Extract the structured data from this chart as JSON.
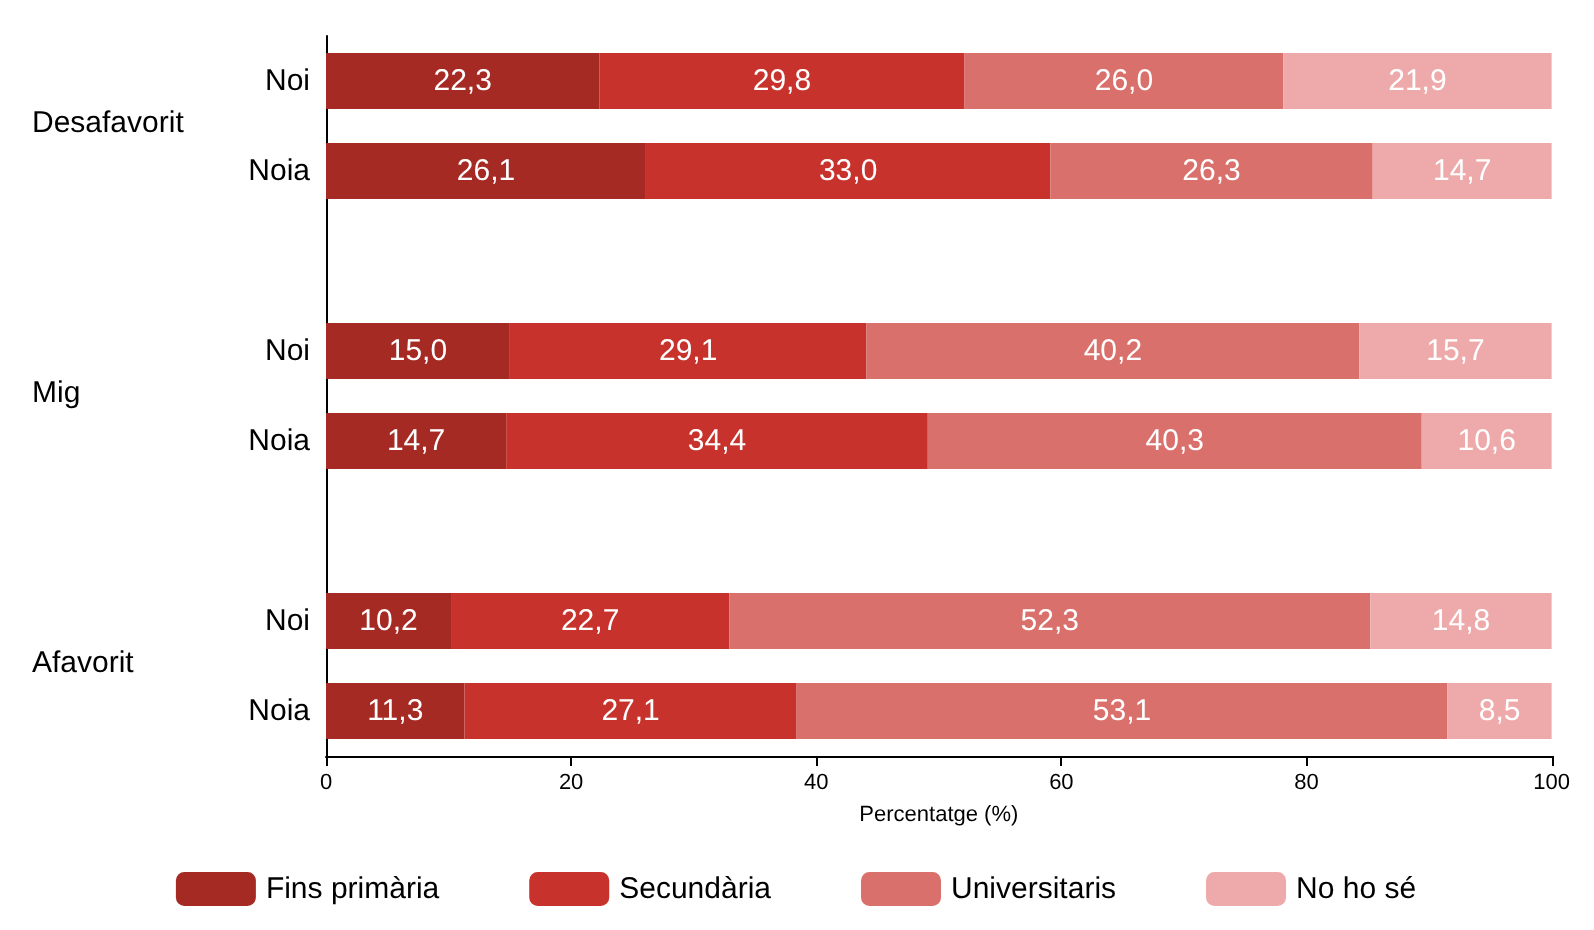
{
  "chart_data": {
    "type": "bar",
    "orientation": "horizontal",
    "stacked": true,
    "categories": [
      "Noi",
      "Noia",
      null,
      "Noi",
      "Noia",
      null,
      "Noi",
      "Noia"
    ],
    "series": [
      {
        "name": "Fins primària",
        "color": "#a52a24",
        "values": [
          22.3,
          26.1,
          null,
          15.0,
          14.7,
          null,
          10.2,
          11.3
        ],
        "value_labels": [
          "22,3",
          "26,1",
          null,
          "15,0",
          "14,7",
          null,
          "10,2",
          "11,3"
        ]
      },
      {
        "name": "Secundària",
        "color": "#c7332c",
        "values": [
          29.8,
          33.0,
          null,
          29.1,
          34.4,
          null,
          22.7,
          27.1
        ],
        "value_labels": [
          "29,8",
          "33,0",
          null,
          "29,1",
          "34,4",
          null,
          "22,7",
          "27,1"
        ]
      },
      {
        "name": "Universitaris",
        "color": "#da706b",
        "values": [
          26.0,
          26.3,
          null,
          40.2,
          40.3,
          null,
          52.3,
          53.1
        ],
        "value_labels": [
          "26,0",
          "26,3",
          null,
          "40,2",
          "40,3",
          null,
          "52,3",
          "53,1"
        ]
      },
      {
        "name": "No ho sé",
        "color": "#eeaaaa",
        "values": [
          21.9,
          14.7,
          null,
          15.7,
          10.6,
          null,
          14.8,
          8.5
        ],
        "value_labels": [
          "21,9",
          "14,7",
          null,
          "15,7",
          "10,6",
          null,
          "14,8",
          "8,5"
        ]
      }
    ],
    "xlim": [
      0,
      100
    ],
    "xticks": [
      0,
      20,
      40,
      60,
      80,
      100
    ],
    "xlabel": "Percentatge (%)",
    "annotations": [
      "Desafavorit",
      "Mig",
      "Afavorit"
    ],
    "grid": false,
    "legend": "bottom"
  }
}
